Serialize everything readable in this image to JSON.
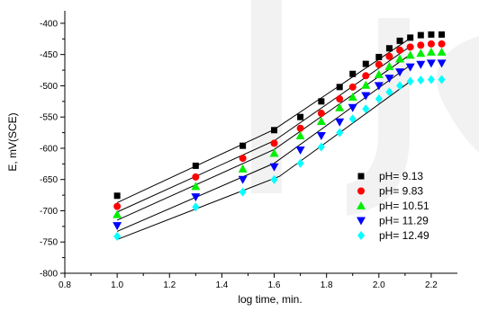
{
  "chart_data": {
    "type": "scatter",
    "xlabel": "log time, min.",
    "ylabel": "E, mV(SCE)",
    "xlim": [
      0.8,
      2.3
    ],
    "ylim": [
      -800,
      -380
    ],
    "x_ticks": [
      "0.8",
      "1.0",
      "1.2",
      "1.4",
      "1.6",
      "1.8",
      "2.0",
      "2.2"
    ],
    "y_ticks": [
      "-800",
      "-750",
      "-700",
      "-650",
      "-600",
      "-550",
      "-500",
      "-450",
      "-400"
    ],
    "grid": false,
    "legend_position": "bottom-right",
    "x": [
      1.0,
      1.3,
      1.48,
      1.6,
      1.7,
      1.78,
      1.85,
      1.9,
      1.95,
      2.0,
      2.04,
      2.08,
      2.12,
      2.16,
      2.2,
      2.24
    ],
    "series": [
      {
        "name": "pH= 9.13",
        "color": "#000000",
        "marker": "square",
        "values": [
          -676,
          -628,
          -596,
          -571,
          -550,
          -525,
          -502,
          -481,
          -465,
          -454,
          -440,
          -428,
          -423,
          -419,
          -418,
          -418
        ],
        "fit": [
          [
            1.0,
            -687
          ],
          [
            1.6,
            -570
          ],
          [
            2.12,
            -424
          ]
        ]
      },
      {
        "name": "pH= 9.83",
        "color": "#ff0000",
        "marker": "circle",
        "values": [
          -693,
          -646,
          -616,
          -592,
          -568,
          -544,
          -521,
          -502,
          -484,
          -466,
          -453,
          -443,
          -438,
          -435,
          -433,
          -433
        ],
        "fit": [
          [
            1.0,
            -702
          ],
          [
            1.6,
            -588
          ],
          [
            2.12,
            -437
          ]
        ]
      },
      {
        "name": "pH= 10.51",
        "color": "#00ee00",
        "marker": "triangle-up",
        "values": [
          -706,
          -661,
          -633,
          -608,
          -580,
          -557,
          -535,
          -518,
          -499,
          -482,
          -469,
          -457,
          -451,
          -448,
          -446,
          -446
        ],
        "fit": [
          [
            1.0,
            -715
          ],
          [
            1.6,
            -602
          ],
          [
            2.12,
            -450
          ]
        ]
      },
      {
        "name": "pH= 11.29",
        "color": "#0000ff",
        "marker": "triangle-down",
        "values": [
          -724,
          -678,
          -650,
          -630,
          -603,
          -580,
          -558,
          -535,
          -516,
          -500,
          -488,
          -478,
          -470,
          -466,
          -464,
          -464
        ],
        "fit": [
          [
            1.0,
            -733
          ],
          [
            1.6,
            -624
          ],
          [
            2.12,
            -467
          ]
        ]
      },
      {
        "name": "pH= 12.49",
        "color": "#00ffff",
        "marker": "diamond",
        "values": [
          -741,
          -694,
          -670,
          -650,
          -624,
          -598,
          -575,
          -553,
          -537,
          -521,
          -510,
          -500,
          -493,
          -491,
          -490,
          -490
        ],
        "fit": [
          [
            1.0,
            -746
          ],
          [
            1.62,
            -645
          ],
          [
            2.12,
            -493
          ]
        ]
      }
    ]
  }
}
